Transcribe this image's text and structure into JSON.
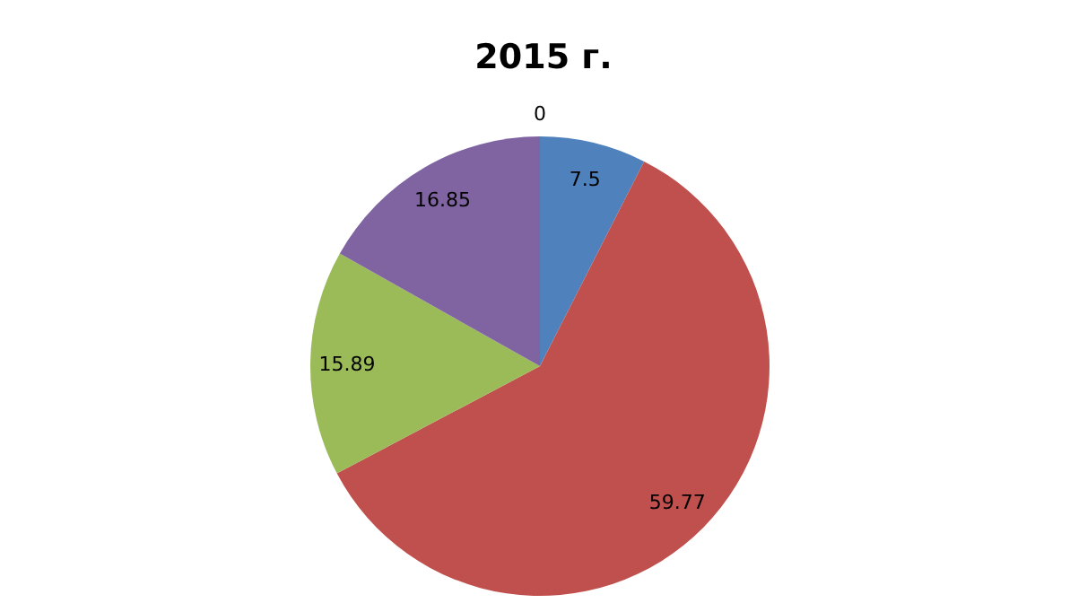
{
  "chart_data": {
    "type": "pie",
    "title": "2015 г.",
    "categories": [
      null,
      null,
      null,
      null,
      null
    ],
    "values": [
      0,
      7.5,
      59.77,
      15.89,
      16.85
    ],
    "colors": [
      "#4bacc6",
      "#4f81bd",
      "#c0504d",
      "#9bbb59",
      "#8064a2"
    ],
    "value_labels": [
      "0",
      "7.5",
      "59.77",
      "15.89",
      "16.85"
    ]
  }
}
